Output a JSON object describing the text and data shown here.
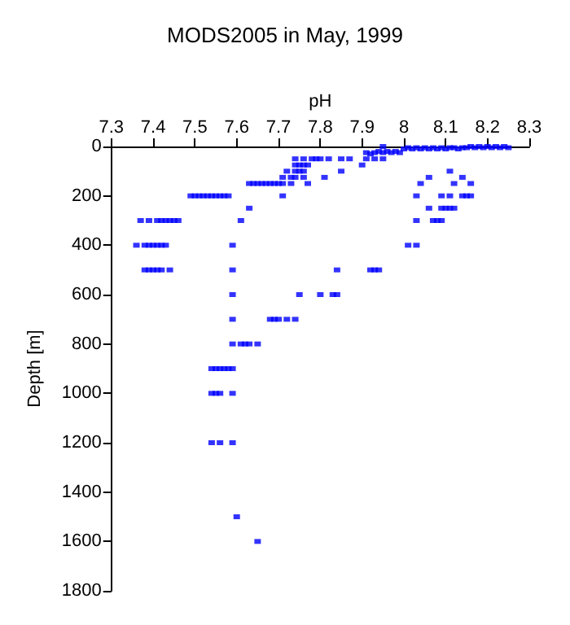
{
  "chart_data": {
    "type": "scatter",
    "title": "MODS2005 in May, 1999",
    "xlabel": "pH",
    "ylabel": "Depth [m]",
    "xlim": [
      7.3,
      8.3
    ],
    "xticks": [
      7.3,
      7.4,
      7.5,
      7.6,
      7.7,
      7.8,
      7.9,
      8,
      8.1,
      8.2,
      8.3
    ],
    "ylim": [
      1800,
      0
    ],
    "yticks": [
      0,
      200,
      400,
      600,
      800,
      1000,
      1200,
      1400,
      1600,
      1800
    ],
    "grid": false,
    "marker": "square",
    "series": [
      {
        "color": "#0000ff",
        "x": [
          8.0,
          8.01,
          8.02,
          8.03,
          8.04,
          8.05,
          8.06,
          8.07,
          8.08,
          8.09,
          8.1,
          8.11,
          8.12,
          8.13,
          8.14,
          8.15,
          8.16,
          8.17,
          8.18,
          8.19,
          8.2,
          8.21,
          8.22,
          8.23,
          8.24,
          8.25,
          7.95,
          7.91,
          7.92,
          7.93,
          7.94,
          7.95,
          7.96,
          7.97,
          7.98,
          7.99,
          7.74,
          7.76,
          7.78,
          7.79,
          7.8,
          7.82,
          7.85,
          7.87,
          7.91,
          7.93,
          7.95,
          7.74,
          7.75,
          7.76,
          7.77,
          7.9,
          7.72,
          7.74,
          7.75,
          7.76,
          7.85,
          8.11,
          7.71,
          7.73,
          7.74,
          7.76,
          7.81,
          8.06,
          8.14,
          7.63,
          7.64,
          7.65,
          7.66,
          7.67,
          7.68,
          7.69,
          7.7,
          7.71,
          7.73,
          7.77,
          8.04,
          8.12,
          8.16,
          7.49,
          7.5,
          7.51,
          7.52,
          7.53,
          7.54,
          7.55,
          7.56,
          7.57,
          7.58,
          7.71,
          8.03,
          8.09,
          8.11,
          8.14,
          8.15,
          8.16,
          7.63,
          8.06,
          8.09,
          8.1,
          8.11,
          8.12,
          7.37,
          7.39,
          7.41,
          7.42,
          7.43,
          7.44,
          7.45,
          7.46,
          7.61,
          8.03,
          8.07,
          8.08,
          8.09,
          7.36,
          7.38,
          7.39,
          7.4,
          7.41,
          7.42,
          7.43,
          7.59,
          8.01,
          8.03,
          7.38,
          7.39,
          7.4,
          7.41,
          7.42,
          7.44,
          7.59,
          7.84,
          7.92,
          7.93,
          7.94,
          7.59,
          7.75,
          7.8,
          7.83,
          7.84,
          7.59,
          7.68,
          7.69,
          7.7,
          7.72,
          7.74,
          7.59,
          7.61,
          7.62,
          7.63,
          7.65,
          7.54,
          7.55,
          7.56,
          7.57,
          7.58,
          7.59,
          7.54,
          7.55,
          7.56,
          7.59,
          7.54,
          7.56,
          7.59,
          7.6,
          7.65
        ],
        "values": [
          10,
          5,
          10,
          5,
          10,
          5,
          10,
          5,
          10,
          5,
          10,
          5,
          5,
          10,
          5,
          5,
          0,
          5,
          0,
          5,
          0,
          5,
          0,
          5,
          0,
          5,
          0,
          25,
          30,
          25,
          20,
          25,
          20,
          25,
          20,
          25,
          50,
          50,
          50,
          50,
          50,
          50,
          50,
          50,
          50,
          50,
          50,
          75,
          75,
          75,
          75,
          75,
          100,
          100,
          100,
          100,
          100,
          100,
          125,
          125,
          125,
          125,
          125,
          125,
          125,
          150,
          150,
          150,
          150,
          150,
          150,
          150,
          150,
          150,
          150,
          150,
          150,
          150,
          150,
          200,
          200,
          200,
          200,
          200,
          200,
          200,
          200,
          200,
          200,
          200,
          200,
          200,
          200,
          200,
          200,
          200,
          250,
          250,
          250,
          250,
          250,
          250,
          300,
          300,
          300,
          300,
          300,
          300,
          300,
          300,
          300,
          300,
          300,
          300,
          300,
          400,
          400,
          400,
          400,
          400,
          400,
          400,
          400,
          400,
          400,
          500,
          500,
          500,
          500,
          500,
          500,
          500,
          500,
          500,
          500,
          500,
          600,
          600,
          600,
          600,
          600,
          700,
          700,
          700,
          700,
          700,
          700,
          800,
          800,
          800,
          800,
          800,
          900,
          900,
          900,
          900,
          900,
          900,
          1000,
          1000,
          1000,
          1000,
          1200,
          1200,
          1200,
          1500,
          1600
        ]
      }
    ]
  }
}
